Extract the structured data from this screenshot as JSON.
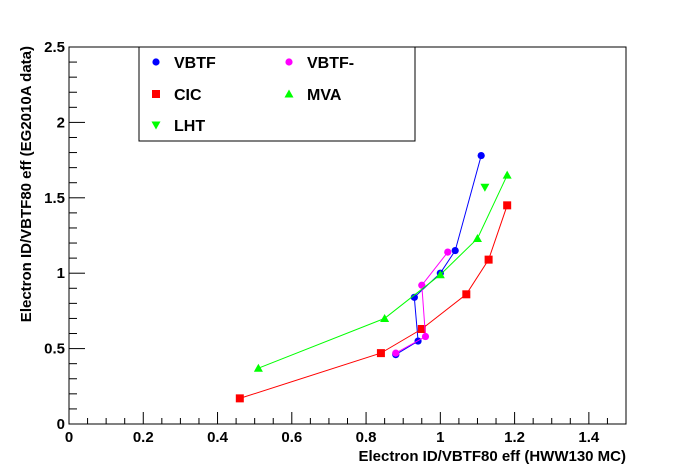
{
  "chart_data": {
    "type": "line",
    "title": "",
    "xlabel": "Electron ID/VBTF80 eff (HWW130 MC)",
    "ylabel": "Electron ID/VBTF80 eff (EG2010A data)",
    "xlim": [
      0,
      1.5
    ],
    "ylim": [
      0,
      2.5
    ],
    "x_ticks": [
      "0",
      "0.2",
      "0.4",
      "0.6",
      "0.8",
      "1",
      "1.2",
      "1.4"
    ],
    "y_ticks": [
      "0",
      "0.5",
      "1",
      "1.5",
      "2",
      "2.5"
    ],
    "grid": false,
    "legend_position": "top-left",
    "series": [
      {
        "name": "VBTF",
        "color": "#0000ff",
        "marker": "circle",
        "points": [
          [
            0.88,
            0.46
          ],
          [
            0.94,
            0.55
          ],
          [
            0.93,
            0.84
          ],
          [
            1.0,
            1.0
          ],
          [
            1.04,
            1.15
          ],
          [
            1.11,
            1.78
          ]
        ]
      },
      {
        "name": "CIC",
        "color": "#ff0000",
        "marker": "square",
        "points": [
          [
            0.46,
            0.17
          ],
          [
            0.84,
            0.47
          ],
          [
            0.95,
            0.63
          ],
          [
            1.07,
            0.86
          ],
          [
            1.13,
            1.09
          ],
          [
            1.18,
            1.45
          ]
        ]
      },
      {
        "name": "LHT",
        "color": "#00ff00",
        "marker": "triangle-down",
        "points": [
          [
            1.12,
            1.57
          ]
        ]
      },
      {
        "name": "VBTF-",
        "color": "#ff00ff",
        "marker": "circle",
        "points": [
          [
            0.88,
            0.47
          ],
          [
            0.96,
            0.58
          ],
          [
            0.95,
            0.92
          ],
          [
            1.02,
            1.14
          ]
        ]
      },
      {
        "name": "MVA",
        "color": "#00ff00",
        "marker": "triangle-up",
        "points": [
          [
            0.51,
            0.37
          ],
          [
            0.85,
            0.7
          ],
          [
            1.0,
            0.99
          ],
          [
            1.1,
            1.23
          ],
          [
            1.18,
            1.65
          ]
        ]
      }
    ]
  }
}
